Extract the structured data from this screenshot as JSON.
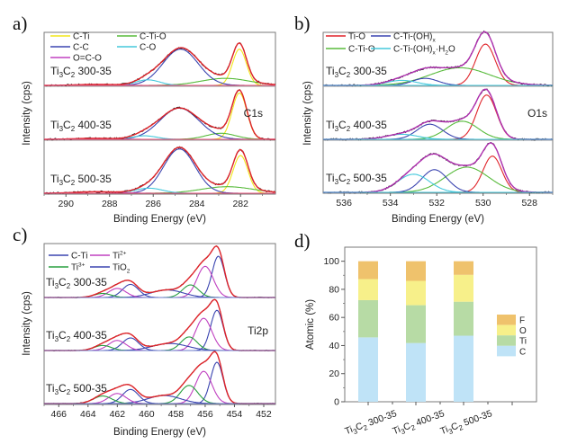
{
  "figure": {
    "panel_letters": [
      "a)",
      "b)",
      "c)",
      "d)"
    ]
  },
  "chart_data": [
    {
      "panel": "a)",
      "type": "line",
      "title": "",
      "region_label": "C1s",
      "xlabel": "Binding Energy (eV)",
      "ylabel": "Intensity (cps)",
      "xlim": [
        291.0,
        280.4
      ],
      "x_reversed": true,
      "xticks": [
        290,
        288,
        286,
        284,
        282
      ],
      "legend": [
        {
          "name": "C-Ti",
          "color": "#f2e61c"
        },
        {
          "name": "C-Ti-O",
          "color": "#58bb3c"
        },
        {
          "name": "C-C",
          "color": "#3b45b0"
        },
        {
          "name": "C-O",
          "color": "#45c9dc"
        },
        {
          "name": "O=C-O",
          "color": "#c040c0"
        }
      ],
      "envelope_color": "#e0242a",
      "samples": [
        {
          "label_main": "Ti",
          "label_sub1": "3",
          "label_mid": "C",
          "label_sub2": "2",
          "label_rest": " 300-35",
          "components": [
            {
              "name": "C-Ti",
              "center": 282.05,
              "height": 0.72,
              "fwhm": 0.75
            },
            {
              "name": "C-Ti-O",
              "center": 282.7,
              "height": 0.14,
              "fwhm": 2.6
            },
            {
              "name": "C-C",
              "center": 284.75,
              "height": 0.72,
              "fwhm": 1.9
            },
            {
              "name": "C-O",
              "center": 286.25,
              "height": 0.11,
              "fwhm": 1.3
            },
            {
              "name": "O=C-O",
              "center": 288.6,
              "height": 0.02,
              "fwhm": 2.0
            }
          ]
        },
        {
          "label_main": "Ti",
          "label_sub1": "3",
          "label_mid": "C",
          "label_sub2": "2",
          "label_rest": " 400-35",
          "components": [
            {
              "name": "C-Ti",
              "center": 282.05,
              "height": 0.92,
              "fwhm": 0.8
            },
            {
              "name": "C-Ti-O",
              "center": 282.9,
              "height": 0.12,
              "fwhm": 1.6
            },
            {
              "name": "C-C",
              "center": 284.8,
              "height": 0.62,
              "fwhm": 2.1
            },
            {
              "name": "C-O",
              "center": 286.4,
              "height": 0.07,
              "fwhm": 1.3
            },
            {
              "name": "O=C-O",
              "center": 288.7,
              "height": 0.02,
              "fwhm": 2.0
            }
          ]
        },
        {
          "label_main": "Ti",
          "label_sub1": "3",
          "label_mid": "C",
          "label_sub2": "2",
          "label_rest": " 500-35",
          "components": [
            {
              "name": "C-Ti",
              "center": 282.0,
              "height": 0.75,
              "fwhm": 0.8
            },
            {
              "name": "C-Ti-O",
              "center": 282.6,
              "height": 0.13,
              "fwhm": 2.8
            },
            {
              "name": "C-C",
              "center": 284.8,
              "height": 0.88,
              "fwhm": 1.7
            },
            {
              "name": "C-O",
              "center": 286.2,
              "height": 0.1,
              "fwhm": 1.5
            },
            {
              "name": "O=C-O",
              "center": 288.6,
              "height": 0.03,
              "fwhm": 2.2
            }
          ]
        }
      ]
    },
    {
      "panel": "b)",
      "type": "line",
      "title": "",
      "region_label": "O1s",
      "xlabel": "Binding Energy (eV)",
      "ylabel": "Intensity (cps)",
      "xlim": [
        536.9,
        527.0
      ],
      "x_reversed": true,
      "xticks": [
        536,
        534,
        532,
        530,
        528
      ],
      "legend": [
        {
          "name": "Ti-O",
          "color": "#e0242a"
        },
        {
          "name": "C-Ti-(OH)",
          "sub": "x",
          "color": "#3b45b0"
        },
        {
          "name": "C-Ti-O",
          "color": "#58bb3c"
        },
        {
          "name": "C-Ti-(OH)",
          "sub": "x",
          "suffix": "·H",
          "sub2": "2",
          "suffix2": "O",
          "color": "#45c9dc"
        }
      ],
      "envelope_color": "#b030b0",
      "samples": [
        {
          "label_main": "Ti",
          "label_sub1": "3",
          "label_mid": "C",
          "label_sub2": "2",
          "label_rest": " 300-35",
          "components": [
            {
              "name": "Ti-O",
              "center": 529.9,
              "height": 0.82,
              "fwhm": 1.0
            },
            {
              "name": "C-Ti-O",
              "center": 531.0,
              "height": 0.35,
              "fwhm": 3.0
            },
            {
              "name": "C-Ti-(OH)x",
              "center": 532.5,
              "height": 0.14,
              "fwhm": 1.3
            },
            {
              "name": "C-Ti-(OH)x·H2O",
              "center": 533.5,
              "height": 0.1,
              "fwhm": 1.5
            }
          ]
        },
        {
          "label_main": "Ti",
          "label_sub1": "3",
          "label_mid": "C",
          "label_sub2": "2",
          "label_rest": " 400-35",
          "components": [
            {
              "name": "Ti-O",
              "center": 529.85,
              "height": 0.88,
              "fwhm": 1.0
            },
            {
              "name": "C-Ti-O",
              "center": 530.9,
              "height": 0.36,
              "fwhm": 1.6
            },
            {
              "name": "C-Ti-(OH)x",
              "center": 532.3,
              "height": 0.3,
              "fwhm": 1.3
            },
            {
              "name": "C-Ti-(OH)x·H2O",
              "center": 533.5,
              "height": 0.1,
              "fwhm": 1.6
            }
          ]
        },
        {
          "label_main": "Ti",
          "label_sub1": "3",
          "label_mid": "C",
          "label_sub2": "2",
          "label_rest": " 500-35",
          "components": [
            {
              "name": "Ti-O",
              "center": 529.6,
              "height": 0.72,
              "fwhm": 0.95
            },
            {
              "name": "C-Ti-O",
              "center": 530.7,
              "height": 0.5,
              "fwhm": 2.2
            },
            {
              "name": "C-Ti-(OH)x",
              "center": 532.1,
              "height": 0.45,
              "fwhm": 1.3
            },
            {
              "name": "C-Ti-(OH)x·H2O",
              "center": 533.0,
              "height": 0.36,
              "fwhm": 1.6
            }
          ]
        }
      ]
    },
    {
      "panel": "c)",
      "type": "line",
      "title": "",
      "region_label": "Ti2p",
      "xlabel": "Binding Energy (eV)",
      "ylabel": "Intensity (cps)",
      "xlim": [
        467.0,
        451.2
      ],
      "x_reversed": true,
      "xticks": [
        466,
        464,
        462,
        460,
        458,
        456,
        454,
        452
      ],
      "legend": [
        {
          "name": "C-Ti",
          "color": "#3b45b0"
        },
        {
          "name": "Ti",
          "sup": "2+",
          "color": "#c040c0"
        },
        {
          "name": "Ti",
          "sup": "3+",
          "color": "#2aa040"
        },
        {
          "name": "TiO",
          "sub": "2",
          "color": "#3b45b0"
        }
      ],
      "envelope_color": "#e0242a",
      "samples": [
        {
          "label_main": "Ti",
          "label_sub1": "3",
          "label_mid": "C",
          "label_sub2": "2",
          "label_rest": " 300-35",
          "components": [
            {
              "name": "C-Ti",
              "center": 455.1,
              "height": 0.82,
              "fwhm": 1.0
            },
            {
              "name": "Ti2+",
              "center": 456.0,
              "height": 0.62,
              "fwhm": 1.3
            },
            {
              "name": "Ti3+",
              "center": 457.0,
              "height": 0.25,
              "fwhm": 1.3
            },
            {
              "name": "TiO2",
              "center": 458.6,
              "height": 0.15,
              "fwhm": 2.6
            },
            {
              "name": "C-Ti",
              "center": 461.1,
              "height": 0.26,
              "fwhm": 1.3
            },
            {
              "name": "Ti2+",
              "center": 462.0,
              "height": 0.18,
              "fwhm": 1.4
            },
            {
              "name": "Ti3+",
              "center": 463.0,
              "height": 0.08,
              "fwhm": 1.4
            }
          ]
        },
        {
          "label_main": "Ti",
          "label_sub1": "3",
          "label_mid": "C",
          "label_sub2": "2",
          "label_rest": " 400-35",
          "components": [
            {
              "name": "C-Ti",
              "center": 455.2,
              "height": 0.8,
              "fwhm": 1.0
            },
            {
              "name": "Ti2+",
              "center": 456.1,
              "height": 0.64,
              "fwhm": 1.3
            },
            {
              "name": "Ti3+",
              "center": 457.1,
              "height": 0.27,
              "fwhm": 1.3
            },
            {
              "name": "TiO2",
              "center": 458.4,
              "height": 0.14,
              "fwhm": 2.8
            },
            {
              "name": "C-Ti",
              "center": 461.1,
              "height": 0.25,
              "fwhm": 1.3
            },
            {
              "name": "Ti2+",
              "center": 462.0,
              "height": 0.2,
              "fwhm": 1.4
            },
            {
              "name": "Ti3+",
              "center": 463.0,
              "height": 0.1,
              "fwhm": 1.4
            }
          ]
        },
        {
          "label_main": "Ti",
          "label_sub1": "3",
          "label_mid": "C",
          "label_sub2": "2",
          "label_rest": " 500-35",
          "components": [
            {
              "name": "C-Ti",
              "center": 455.2,
              "height": 0.82,
              "fwhm": 1.0
            },
            {
              "name": "Ti2+",
              "center": 456.1,
              "height": 0.64,
              "fwhm": 1.3
            },
            {
              "name": "Ti3+",
              "center": 457.1,
              "height": 0.36,
              "fwhm": 1.4
            },
            {
              "name": "TiO2",
              "center": 458.8,
              "height": 0.16,
              "fwhm": 2.6
            },
            {
              "name": "C-Ti",
              "center": 461.1,
              "height": 0.28,
              "fwhm": 1.3
            },
            {
              "name": "Ti2+",
              "center": 462.0,
              "height": 0.2,
              "fwhm": 1.4
            },
            {
              "name": "Ti3+",
              "center": 463.0,
              "height": 0.15,
              "fwhm": 1.5
            }
          ]
        }
      ]
    },
    {
      "panel": "d)",
      "type": "bar",
      "stacked": true,
      "title": "",
      "xlabel": "",
      "ylabel": "Atomic (%)",
      "ylim": [
        0,
        110
      ],
      "yticks": [
        0,
        20,
        40,
        60,
        80,
        100
      ],
      "categories": [
        {
          "label_main": "Ti",
          "label_sub1": "3",
          "label_mid": "C",
          "label_sub2": "2",
          "label_rest": " 300-35"
        },
        {
          "label_main": "Ti",
          "label_sub1": "3",
          "label_mid": "C",
          "label_sub2": "2",
          "label_rest": " 400-35"
        },
        {
          "label_main": "Ti",
          "label_sub1": "3",
          "label_mid": "C",
          "label_sub2": "2",
          "label_rest": " 500-35"
        }
      ],
      "series": [
        {
          "name": "C",
          "color": "#bfe3f7",
          "values": [
            45.8,
            41.8,
            47.0
          ]
        },
        {
          "name": "Ti",
          "color": "#b7dba5",
          "values": [
            26.5,
            26.9,
            24.2
          ]
        },
        {
          "name": "O",
          "color": "#f7f08a",
          "values": [
            15.0,
            17.3,
            19.1
          ]
        },
        {
          "name": "F",
          "color": "#efc26c",
          "values": [
            12.7,
            14.0,
            9.7
          ]
        }
      ],
      "legend_order": [
        "F",
        "O",
        "Ti",
        "C"
      ],
      "legend_position": "right"
    }
  ]
}
